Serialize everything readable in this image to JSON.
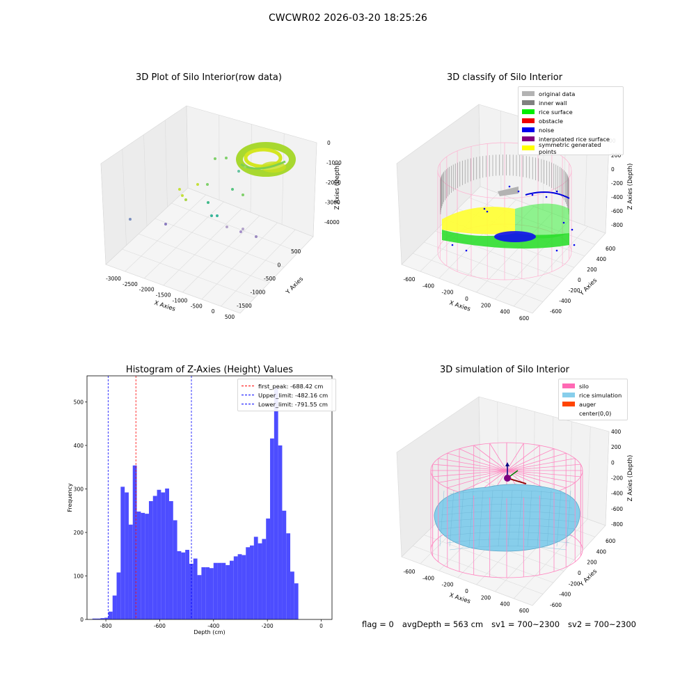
{
  "figure": {
    "suptitle": "CWCWR02 2026-03-20 18:25:26",
    "status": {
      "flag": "flag = 0",
      "avg_depth": "avgDepth = 563 cm",
      "sv1": "sv1 = 700~2300",
      "sv2": "sv2 = 700~2300"
    }
  },
  "chart_data": [
    {
      "id": "raw",
      "type": "scatter",
      "title": "3D Plot of Silo Interior(row data)",
      "xlabel": "X Axies",
      "ylabel": "Y Axies",
      "zlabel": "Z Axies (Depth)",
      "x_ticks": [
        "-3000",
        "-2500",
        "-2000",
        "-1500",
        "-1000",
        "-500",
        "0",
        "500"
      ],
      "y_ticks": [
        "500",
        "0",
        "-500",
        "-1000",
        "-1500"
      ],
      "z_ticks": [
        "0",
        "-1000",
        "-2000",
        "-3000",
        "-4000"
      ],
      "colormap": "viridis (by depth)"
    },
    {
      "id": "classify",
      "type": "scatter",
      "title": "3D classify of Silo Interior",
      "xlabel": "X Axies",
      "ylabel": "Y Axies",
      "zlabel": "Z Axies (Depth)",
      "x_ticks": [
        "-600",
        "-400",
        "-200",
        "0",
        "200",
        "400",
        "600"
      ],
      "y_ticks": [
        "600",
        "400",
        "200",
        "0",
        "-200",
        "-400",
        "-600"
      ],
      "z_ticks": [
        "200",
        "0",
        "-200",
        "-400",
        "-600",
        "-800"
      ],
      "z_top_tick": "00",
      "legend": [
        {
          "label": "original data",
          "color": "#b3b3b3"
        },
        {
          "label": "inner wall",
          "color": "#808080"
        },
        {
          "label": "rice surface",
          "color": "#00ee00"
        },
        {
          "label": "obstacle",
          "color": "#ee0000"
        },
        {
          "label": "noise",
          "color": "#0000ee"
        },
        {
          "label": "interpolated rice surface",
          "color": "#800080"
        },
        {
          "label": "symmetric generated points",
          "color": "#ffff00"
        }
      ],
      "legend_position": "top-right"
    },
    {
      "id": "histogram",
      "type": "bar",
      "title": "Histogram of Z-Axies (Height) Values",
      "xlabel": "Depth (cm)",
      "ylabel": "Frequency",
      "xlim": [
        -870,
        40
      ],
      "ylim": [
        0,
        560
      ],
      "x_ticks": [
        -800,
        -600,
        -400,
        -200,
        0
      ],
      "y_ticks": [
        0,
        100,
        200,
        300,
        400,
        500
      ],
      "bin_width": 15,
      "bar_color": "#4d4dff",
      "bins": [
        {
          "x": -850,
          "v": 2
        },
        {
          "x": -835,
          "v": 2
        },
        {
          "x": -820,
          "v": 3
        },
        {
          "x": -805,
          "v": 4
        },
        {
          "x": -790,
          "v": 18
        },
        {
          "x": -775,
          "v": 55
        },
        {
          "x": -760,
          "v": 108
        },
        {
          "x": -745,
          "v": 305
        },
        {
          "x": -730,
          "v": 292
        },
        {
          "x": -715,
          "v": 218
        },
        {
          "x": -700,
          "v": 354
        },
        {
          "x": -685,
          "v": 248
        },
        {
          "x": -670,
          "v": 245
        },
        {
          "x": -655,
          "v": 243
        },
        {
          "x": -640,
          "v": 272
        },
        {
          "x": -625,
          "v": 284
        },
        {
          "x": -610,
          "v": 298
        },
        {
          "x": -595,
          "v": 292
        },
        {
          "x": -580,
          "v": 301
        },
        {
          "x": -565,
          "v": 272
        },
        {
          "x": -550,
          "v": 228
        },
        {
          "x": -535,
          "v": 157
        },
        {
          "x": -520,
          "v": 154
        },
        {
          "x": -505,
          "v": 160
        },
        {
          "x": -490,
          "v": 128
        },
        {
          "x": -475,
          "v": 140
        },
        {
          "x": -460,
          "v": 102
        },
        {
          "x": -445,
          "v": 120
        },
        {
          "x": -430,
          "v": 120
        },
        {
          "x": -415,
          "v": 118
        },
        {
          "x": -400,
          "v": 130
        },
        {
          "x": -385,
          "v": 130
        },
        {
          "x": -370,
          "v": 130
        },
        {
          "x": -355,
          "v": 125
        },
        {
          "x": -340,
          "v": 135
        },
        {
          "x": -325,
          "v": 145
        },
        {
          "x": -310,
          "v": 150
        },
        {
          "x": -295,
          "v": 148
        },
        {
          "x": -280,
          "v": 166
        },
        {
          "x": -265,
          "v": 170
        },
        {
          "x": -250,
          "v": 190
        },
        {
          "x": -235,
          "v": 175
        },
        {
          "x": -220,
          "v": 185
        },
        {
          "x": -205,
          "v": 232
        },
        {
          "x": -190,
          "v": 416
        },
        {
          "x": -175,
          "v": 532
        },
        {
          "x": -160,
          "v": 400
        },
        {
          "x": -145,
          "v": 250
        },
        {
          "x": -130,
          "v": 198
        },
        {
          "x": -115,
          "v": 110
        },
        {
          "x": -100,
          "v": 83
        }
      ],
      "vlines": [
        {
          "x": -688.42,
          "color": "#ff0000",
          "label": "first_peak: -688.42 cm"
        },
        {
          "x": -482.16,
          "color": "#0000ff",
          "label": "Upper_limit: -482.16 cm"
        },
        {
          "x": -791.55,
          "color": "#0000ff",
          "label": "Lower_limit: -791.55 cm"
        }
      ],
      "legend_position": "top-right"
    },
    {
      "id": "simulation",
      "type": "surface",
      "title": "3D simulation of Silo Interior",
      "xlabel": "X Axies",
      "ylabel": "Y Axies",
      "zlabel": "Z Axies (Depth)",
      "x_ticks": [
        "-600",
        "-400",
        "-200",
        "0",
        "200",
        "400",
        "600"
      ],
      "y_ticks": [
        "600",
        "400",
        "200",
        "0",
        "-200",
        "-400",
        "-600"
      ],
      "z_ticks": [
        "400",
        "200",
        "0",
        "-200",
        "-400",
        "-600",
        "-800"
      ],
      "legend": [
        {
          "label": "silo",
          "color": "#ff69b4"
        },
        {
          "label": "rice simulation",
          "color": "#87ceeb"
        },
        {
          "label": "auger",
          "color": "#ff4500"
        },
        {
          "label": "center(0,0)",
          "color": "#ffffff"
        }
      ],
      "legend_position": "top-right"
    }
  ]
}
